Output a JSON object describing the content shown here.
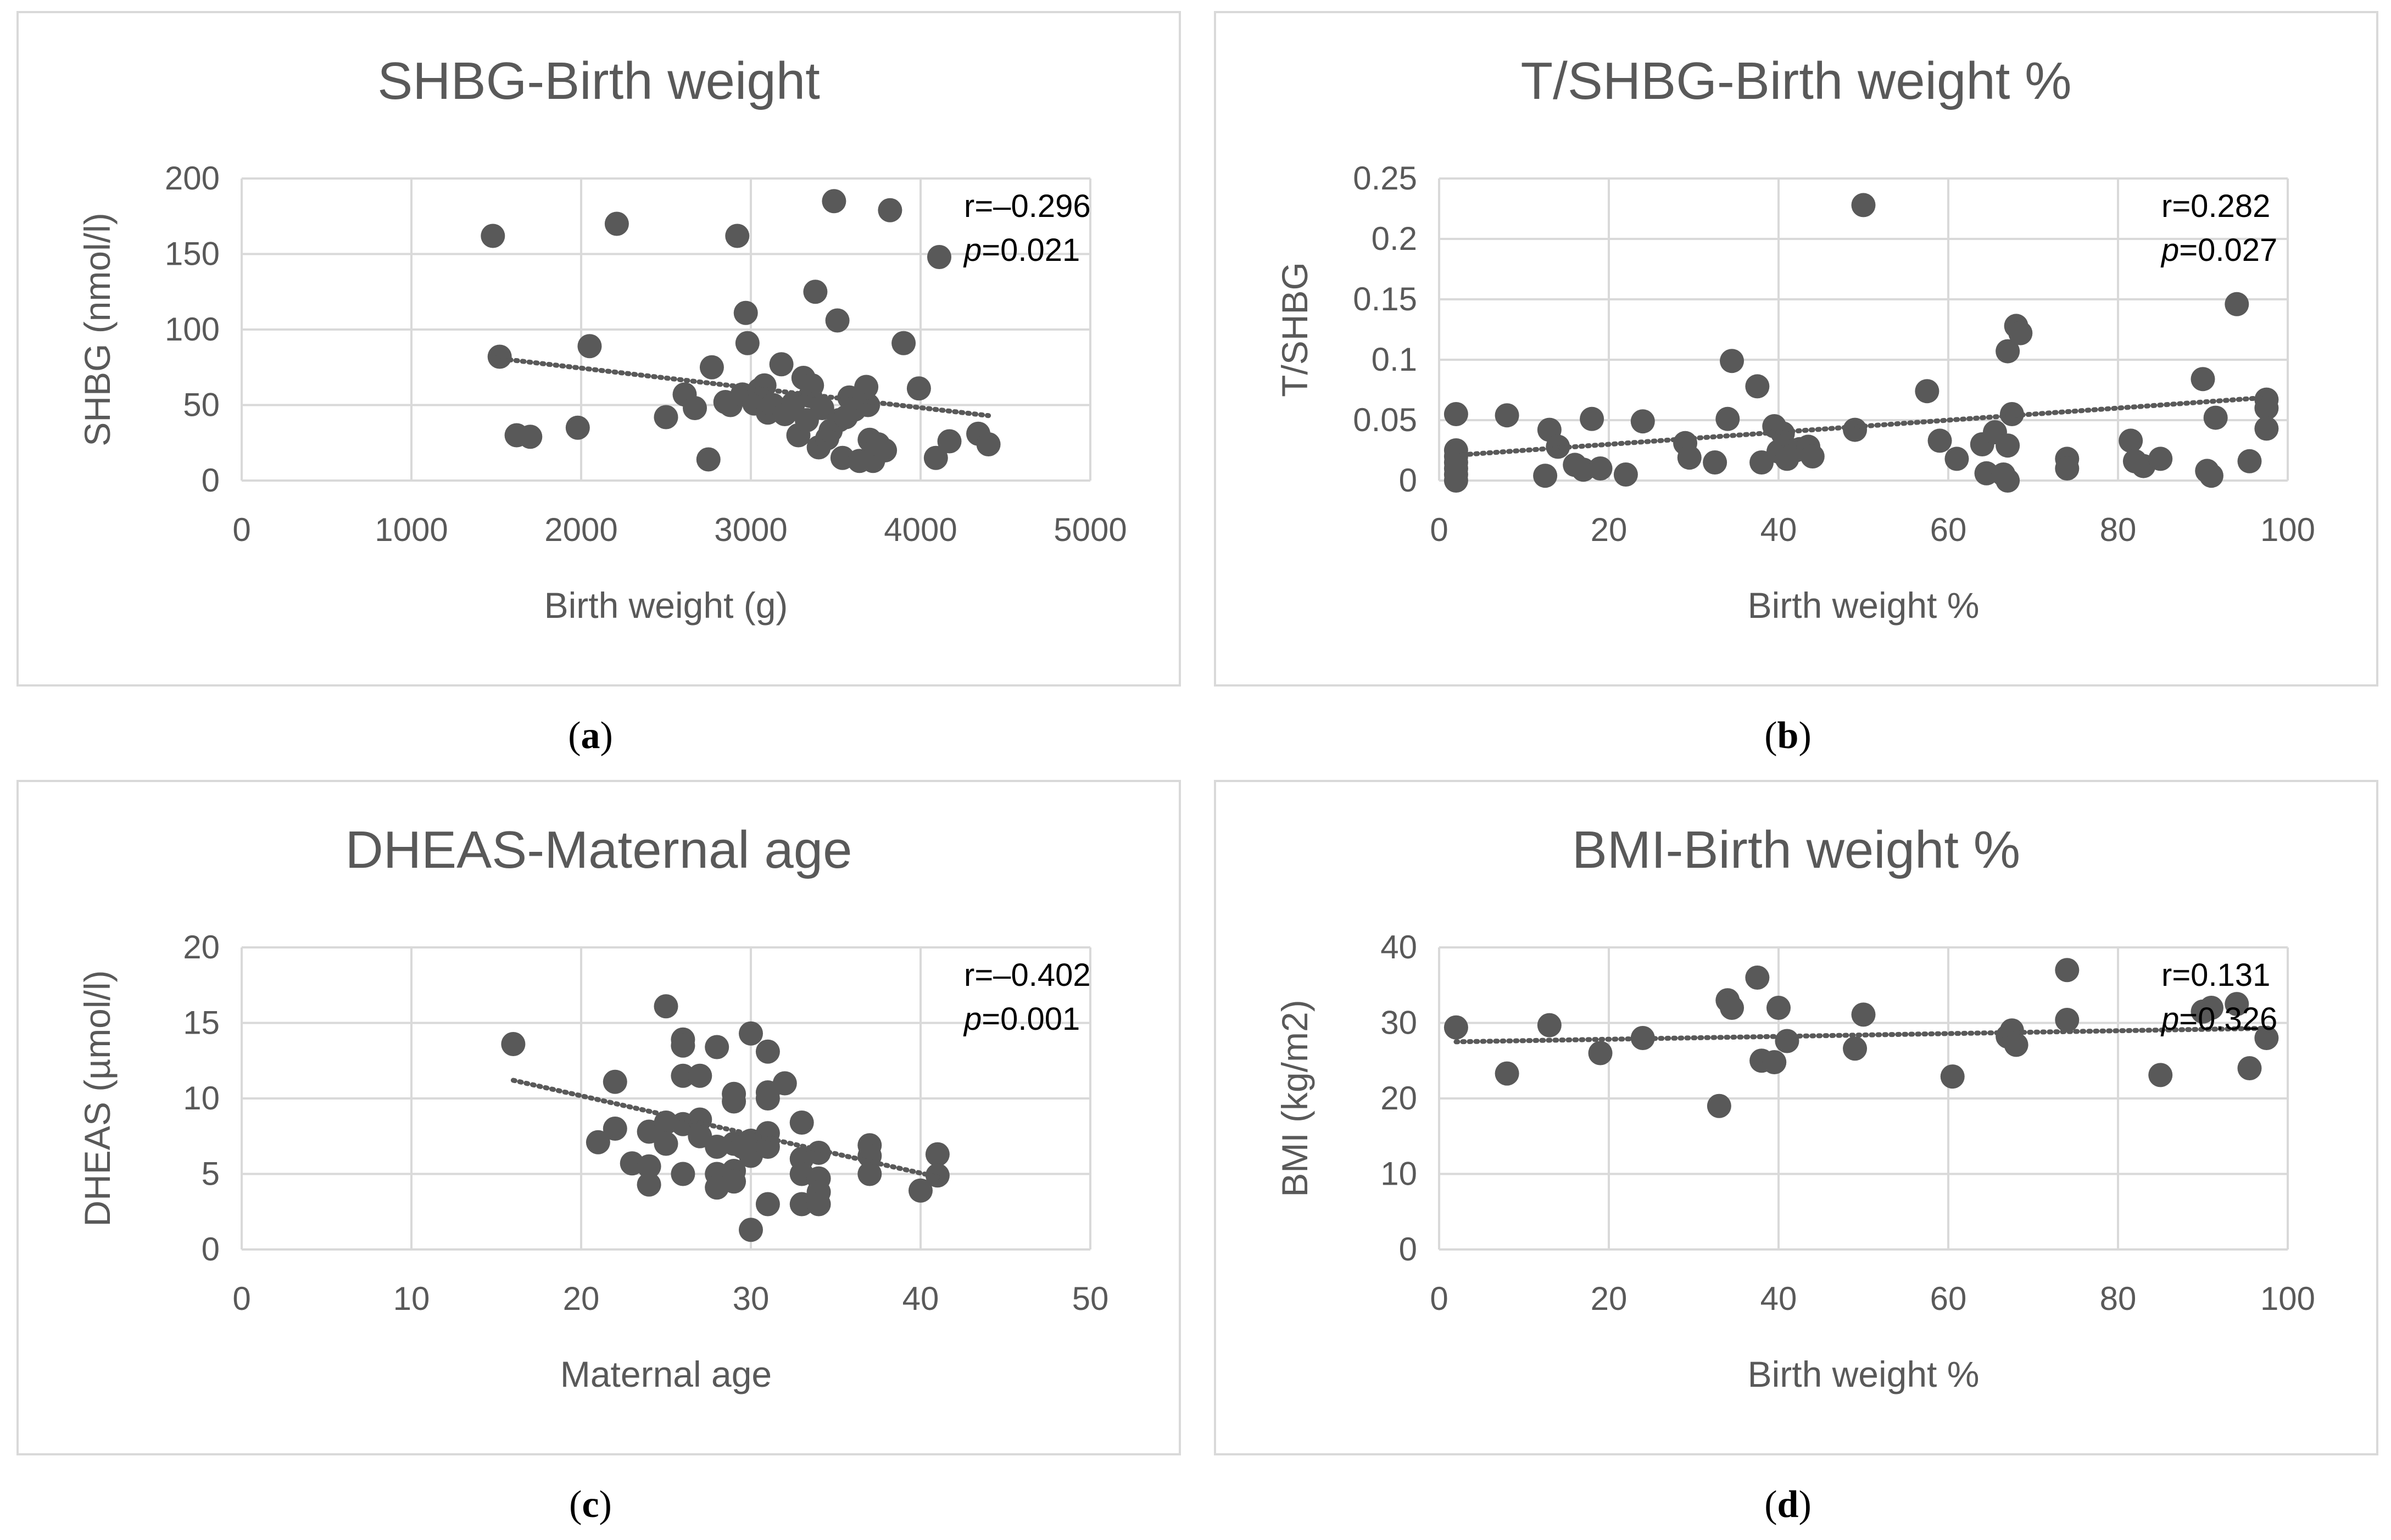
{
  "chart_data": [
    {
      "type": "scatter",
      "id": "a",
      "panel_label": "a",
      "title": "SHBG-Birth weight",
      "xlabel": "Birth weight (g)",
      "ylabel": "SHBG (nmol/l)",
      "xlim": [
        0,
        5000
      ],
      "ylim": [
        0,
        200
      ],
      "xticks": [
        0,
        1000,
        2000,
        3000,
        4000,
        5000
      ],
      "yticks": [
        0,
        50,
        100,
        150,
        200
      ],
      "xtick_labels": [
        "0",
        "1000",
        "2000",
        "3000",
        "4000",
        "5000"
      ],
      "ytick_labels": [
        "0",
        "50",
        "100",
        "150",
        "200"
      ],
      "annotation_r": "r=–0.296",
      "annotation_p_label": "p",
      "annotation_p_value": "=0.021",
      "trendline": {
        "x": [
          1500,
          4400
        ],
        "y": [
          81,
          43
        ]
      },
      "points": [
        [
          1480,
          162
        ],
        [
          1520,
          82
        ],
        [
          1620,
          30
        ],
        [
          1700,
          29
        ],
        [
          1980,
          35
        ],
        [
          2050,
          89
        ],
        [
          2210,
          170
        ],
        [
          2500,
          42
        ],
        [
          2610,
          57
        ],
        [
          2670,
          48
        ],
        [
          2750,
          14
        ],
        [
          2770,
          75
        ],
        [
          2850,
          52
        ],
        [
          2880,
          50
        ],
        [
          2920,
          162
        ],
        [
          2950,
          57
        ],
        [
          2970,
          111
        ],
        [
          2980,
          91
        ],
        [
          3020,
          51
        ],
        [
          3050,
          60
        ],
        [
          3080,
          63
        ],
        [
          3100,
          45
        ],
        [
          3130,
          50
        ],
        [
          3180,
          77
        ],
        [
          3200,
          44
        ],
        [
          3250,
          51
        ],
        [
          3280,
          30
        ],
        [
          3310,
          68
        ],
        [
          3330,
          40
        ],
        [
          3350,
          56
        ],
        [
          3360,
          63
        ],
        [
          3380,
          125
        ],
        [
          3400,
          22
        ],
        [
          3420,
          48
        ],
        [
          3450,
          28
        ],
        [
          3470,
          33
        ],
        [
          3490,
          185
        ],
        [
          3510,
          106
        ],
        [
          3520,
          40
        ],
        [
          3540,
          15
        ],
        [
          3560,
          42
        ],
        [
          3580,
          55
        ],
        [
          3610,
          47
        ],
        [
          3640,
          13
        ],
        [
          3680,
          62
        ],
        [
          3690,
          50
        ],
        [
          3700,
          27
        ],
        [
          3720,
          13
        ],
        [
          3750,
          24
        ],
        [
          3790,
          20
        ],
        [
          3820,
          179
        ],
        [
          3900,
          91
        ],
        [
          3990,
          61
        ],
        [
          4090,
          15
        ],
        [
          4110,
          148
        ],
        [
          4170,
          26
        ],
        [
          4340,
          31
        ],
        [
          4400,
          24
        ]
      ]
    },
    {
      "type": "scatter",
      "id": "b",
      "panel_label": "b",
      "title": "T/SHBG-Birth weight %",
      "xlabel": "Birth weight %",
      "ylabel": "T/SHBG",
      "xlim": [
        0,
        100
      ],
      "ylim": [
        0,
        0.25
      ],
      "xticks": [
        0,
        20,
        40,
        60,
        80,
        100
      ],
      "yticks": [
        0,
        0.05,
        0.1,
        0.15,
        0.2,
        0.25
      ],
      "xtick_labels": [
        "0",
        "20",
        "40",
        "60",
        "80",
        "100"
      ],
      "ytick_labels": [
        "0",
        "0.05",
        "0.1",
        "0.15",
        "0.2",
        "0.25"
      ],
      "annotation_r": "r=0.282",
      "annotation_p_label": "p",
      "annotation_p_value": "=0.027",
      "trendline": {
        "x": [
          2,
          98
        ],
        "y": [
          0.021,
          0.069
        ]
      },
      "points": [
        [
          2,
          0.055
        ],
        [
          2,
          0.025
        ],
        [
          2,
          0.02
        ],
        [
          2,
          0.015
        ],
        [
          2,
          0.01
        ],
        [
          2,
          0.005
        ],
        [
          2,
          0.0
        ],
        [
          8,
          0.054
        ],
        [
          12.5,
          0.004
        ],
        [
          13,
          0.042
        ],
        [
          14,
          0.028
        ],
        [
          16,
          0.013
        ],
        [
          17,
          0.009
        ],
        [
          18,
          0.051
        ],
        [
          19,
          0.01
        ],
        [
          22,
          0.005
        ],
        [
          24,
          0.049
        ],
        [
          29,
          0.031
        ],
        [
          29.5,
          0.019
        ],
        [
          32.5,
          0.015
        ],
        [
          34,
          0.051
        ],
        [
          34.5,
          0.099
        ],
        [
          37.5,
          0.078
        ],
        [
          38,
          0.015
        ],
        [
          39.5,
          0.045
        ],
        [
          40,
          0.024
        ],
        [
          40.5,
          0.039
        ],
        [
          41,
          0.018
        ],
        [
          42,
          0.025
        ],
        [
          42.5,
          0.026
        ],
        [
          43.5,
          0.028
        ],
        [
          44,
          0.02
        ],
        [
          49,
          0.042
        ],
        [
          50,
          0.228
        ],
        [
          57.5,
          0.074
        ],
        [
          59,
          0.033
        ],
        [
          61,
          0.018
        ],
        [
          64,
          0.03
        ],
        [
          64.5,
          0.006
        ],
        [
          65.5,
          0.04
        ],
        [
          66.5,
          0.005
        ],
        [
          67,
          0.0
        ],
        [
          67,
          0.107
        ],
        [
          67,
          0.029
        ],
        [
          67.5,
          0.055
        ],
        [
          68,
          0.128
        ],
        [
          68.5,
          0.122
        ],
        [
          74,
          0.018
        ],
        [
          74,
          0.01
        ],
        [
          81.5,
          0.033
        ],
        [
          82,
          0.016
        ],
        [
          83,
          0.012
        ],
        [
          85,
          0.018
        ],
        [
          90,
          0.084
        ],
        [
          90.5,
          0.008
        ],
        [
          91,
          0.004
        ],
        [
          91.5,
          0.052
        ],
        [
          94,
          0.146
        ],
        [
          95.5,
          0.016
        ],
        [
          97.5,
          0.067
        ],
        [
          97.5,
          0.06
        ],
        [
          97.5,
          0.043
        ]
      ]
    },
    {
      "type": "scatter",
      "id": "c",
      "panel_label": "c",
      "title": "DHEAS-Maternal age",
      "xlabel": "Maternal age",
      "ylabel": "DHEAS (µmol/l)",
      "xlim": [
        0,
        50
      ],
      "ylim": [
        0,
        20
      ],
      "xticks": [
        0,
        10,
        20,
        30,
        40,
        50
      ],
      "yticks": [
        0,
        5,
        10,
        15,
        20
      ],
      "xtick_labels": [
        "0",
        "10",
        "20",
        "30",
        "40",
        "50"
      ],
      "ytick_labels": [
        "0",
        "5",
        "10",
        "15",
        "20"
      ],
      "annotation_r": "r=–0.402",
      "annotation_p_label": "p",
      "annotation_p_value": "=0.001",
      "trendline": {
        "x": [
          16,
          41
        ],
        "y": [
          11.2,
          4.8
        ]
      },
      "points": [
        [
          16,
          13.6
        ],
        [
          21,
          7.1
        ],
        [
          22,
          11.1
        ],
        [
          22,
          8.0
        ],
        [
          23,
          5.7
        ],
        [
          24,
          5.5
        ],
        [
          24,
          4.3
        ],
        [
          24,
          7.8
        ],
        [
          25,
          16.1
        ],
        [
          25,
          8.4
        ],
        [
          25,
          7.0
        ],
        [
          26,
          13.9
        ],
        [
          26,
          13.5
        ],
        [
          26,
          11.5
        ],
        [
          26,
          8.3
        ],
        [
          26,
          5.0
        ],
        [
          27,
          11.5
        ],
        [
          27,
          8.6
        ],
        [
          27,
          7.5
        ],
        [
          28,
          13.4
        ],
        [
          28,
          6.8
        ],
        [
          28,
          5.0
        ],
        [
          28,
          4.1
        ],
        [
          29,
          10.3
        ],
        [
          29,
          9.8
        ],
        [
          29,
          7.0
        ],
        [
          29,
          5.2
        ],
        [
          29,
          4.5
        ],
        [
          29.5,
          6.8
        ],
        [
          30,
          14.3
        ],
        [
          30,
          7.2
        ],
        [
          30,
          6.2
        ],
        [
          30,
          1.3
        ],
        [
          31,
          13.1
        ],
        [
          31,
          10.4
        ],
        [
          31,
          10.0
        ],
        [
          31,
          7.7
        ],
        [
          31,
          6.8
        ],
        [
          31,
          3.0
        ],
        [
          32,
          11.0
        ],
        [
          33,
          8.4
        ],
        [
          33,
          6.0
        ],
        [
          33,
          5.0
        ],
        [
          33,
          3.0
        ],
        [
          34,
          6.4
        ],
        [
          34,
          4.7
        ],
        [
          34,
          3.8
        ],
        [
          34,
          3.0
        ],
        [
          37,
          6.9
        ],
        [
          37,
          6.2
        ],
        [
          37,
          5.0
        ],
        [
          40,
          3.9
        ],
        [
          41,
          6.3
        ],
        [
          41,
          4.9
        ]
      ]
    },
    {
      "type": "scatter",
      "id": "d",
      "panel_label": "d",
      "title": "BMI-Birth weight %",
      "xlabel": "Birth weight %",
      "ylabel": "BMI (kg/m2)",
      "xlim": [
        0,
        100
      ],
      "ylim": [
        0,
        40
      ],
      "xticks": [
        0,
        20,
        40,
        60,
        80,
        100
      ],
      "yticks": [
        0,
        10,
        20,
        30,
        40
      ],
      "xtick_labels": [
        "0",
        "20",
        "40",
        "60",
        "80",
        "100"
      ],
      "ytick_labels": [
        "0",
        "10",
        "20",
        "30",
        "40"
      ],
      "annotation_r": "r=0.131",
      "annotation_p_label": "p",
      "annotation_p_value": "=0.326",
      "trendline": {
        "x": [
          2,
          98
        ],
        "y": [
          27.5,
          29.3
        ]
      },
      "points": [
        [
          2,
          29.4
        ],
        [
          8,
          23.3
        ],
        [
          13,
          29.7
        ],
        [
          19,
          26.0
        ],
        [
          24,
          28.0
        ],
        [
          33,
          19.0
        ],
        [
          34,
          33.0
        ],
        [
          34.5,
          32.0
        ],
        [
          37.5,
          36.0
        ],
        [
          38,
          25.0
        ],
        [
          39.5,
          24.8
        ],
        [
          40,
          32.0
        ],
        [
          41,
          27.6
        ],
        [
          49,
          26.6
        ],
        [
          50,
          31.1
        ],
        [
          60.5,
          22.9
        ],
        [
          67,
          28.2
        ],
        [
          67.5,
          29.0
        ],
        [
          68,
          27.1
        ],
        [
          74,
          37.0
        ],
        [
          74,
          30.4
        ],
        [
          85,
          23.1
        ],
        [
          90,
          31.5
        ],
        [
          91,
          32.0
        ],
        [
          94,
          32.5
        ],
        [
          95.5,
          24.0
        ],
        [
          97.5,
          28.0
        ]
      ]
    }
  ]
}
